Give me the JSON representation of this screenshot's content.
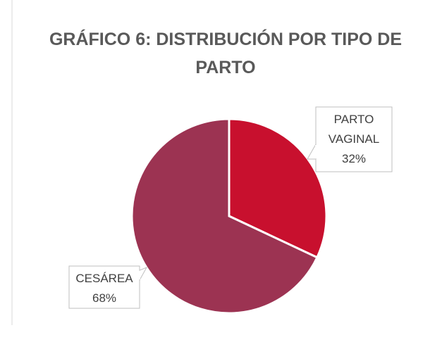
{
  "chart_data": {
    "type": "pie",
    "title": "GRÁFICO 6: DISTRIBUCIÓN POR TIPO DE PARTO",
    "categories": [
      "PARTO VAGINAL",
      "CESÁREA"
    ],
    "values": [
      32,
      68
    ],
    "value_labels": [
      "32%",
      "68%"
    ],
    "colors": [
      "#c8102e",
      "#9c3352"
    ]
  }
}
